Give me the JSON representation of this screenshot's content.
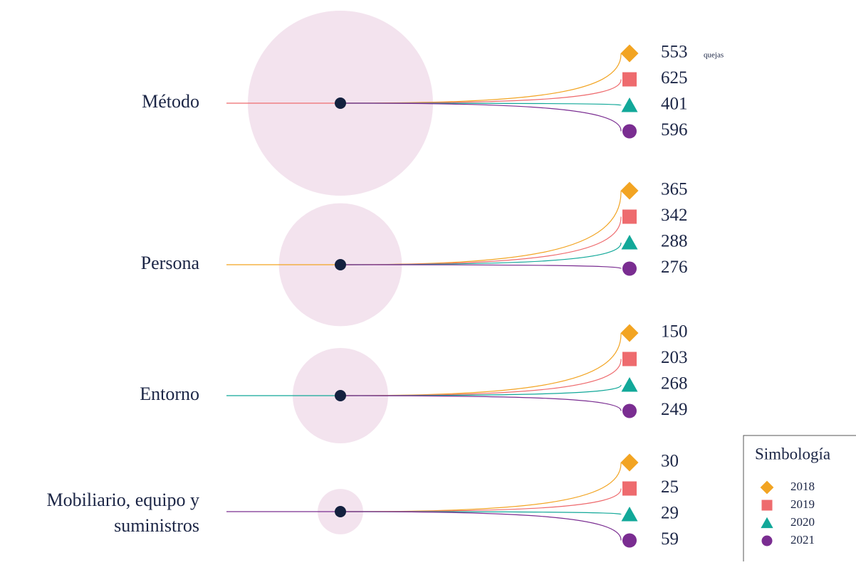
{
  "chart_data": {
    "type": "bubble-flow",
    "categories": [
      "Método",
      "Persona",
      "Entorno",
      "Mobiliario, equipo y suministros"
    ],
    "category_colors": [
      "#ee6b6e",
      "#f2a422",
      "#12a899",
      "#7a2d91"
    ],
    "bubble_color": "#f3e3ee",
    "unit": "quejas",
    "legend_title": "Simbología",
    "series": [
      {
        "name": "2018",
        "color": "#f2a422",
        "marker": "diamond",
        "values": [
          553,
          365,
          150,
          30
        ]
      },
      {
        "name": "2019",
        "color": "#ee6b6e",
        "marker": "square",
        "values": [
          625,
          342,
          203,
          25
        ]
      },
      {
        "name": "2020",
        "color": "#12a899",
        "marker": "triangle",
        "values": [
          401,
          288,
          268,
          29
        ]
      },
      {
        "name": "2021",
        "color": "#7a2d91",
        "marker": "circle",
        "values": [
          596,
          276,
          249,
          59
        ]
      }
    ]
  }
}
